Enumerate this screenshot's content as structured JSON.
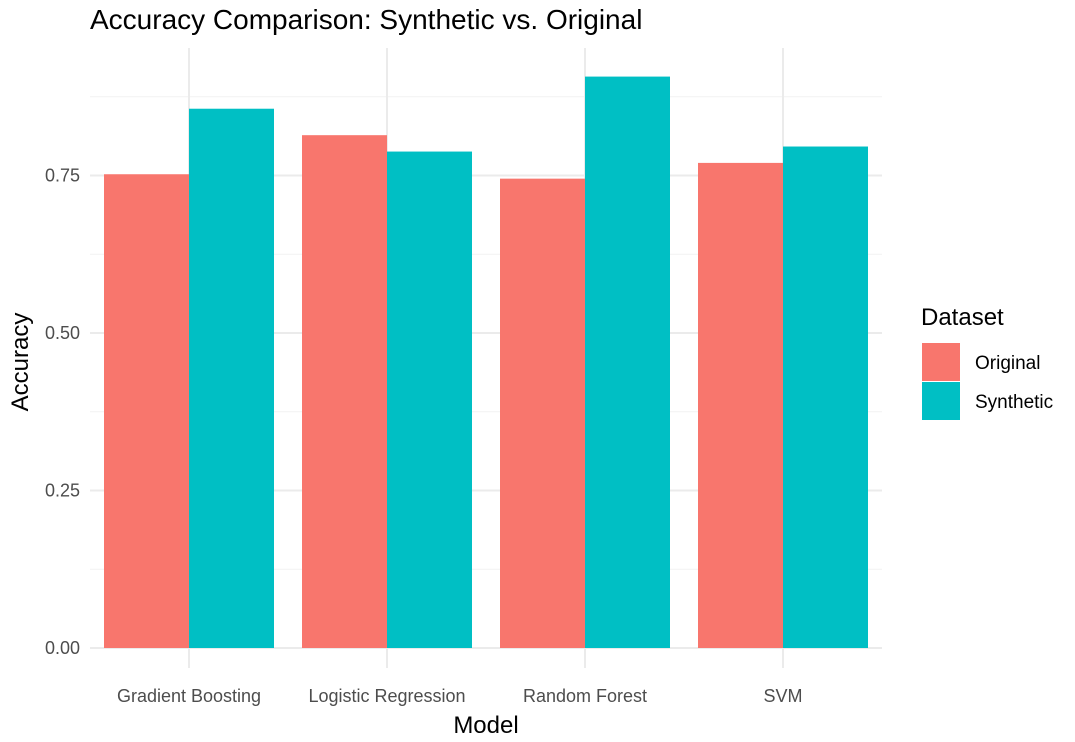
{
  "chart_data": {
    "type": "bar",
    "title": "Accuracy Comparison: Synthetic vs. Original",
    "xlabel": "Model",
    "ylabel": "Accuracy",
    "categories": [
      "Gradient Boosting",
      "Logistic Regression",
      "Random Forest",
      "SVM"
    ],
    "series": [
      {
        "name": "Original",
        "color": "#F8766D",
        "values": [
          0.752,
          0.814,
          0.745,
          0.77
        ]
      },
      {
        "name": "Synthetic",
        "color": "#00BFC4",
        "values": [
          0.856,
          0.788,
          0.907,
          0.796
        ]
      }
    ],
    "ylim": [
      0,
      0.95
    ],
    "yticks": [
      0.0,
      0.25,
      0.5,
      0.75
    ],
    "ytick_labels": [
      "0.00",
      "0.25",
      "0.50",
      "0.75"
    ],
    "legend": {
      "title": "Dataset",
      "position": "right"
    },
    "grid": true
  }
}
